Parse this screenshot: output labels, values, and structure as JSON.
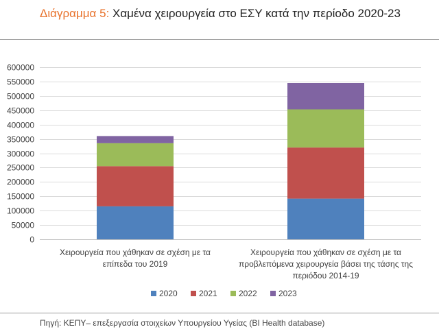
{
  "figure": {
    "label": "Διάγραμμα 5",
    "colon": ":",
    "title": " Χαμένα χειρουργεία στο ΕΣΥ κατά την περίοδο 2020-23",
    "source": "Πηγή: ΚΕΠΥ– επεξεργασία στοιχείων Υπουργείου Υγείας (BI Health database)"
  },
  "chart_data": {
    "type": "bar",
    "stacked": true,
    "categories": [
      [
        "Χειρουργεία που χάθηκαν σε σχέση με τα",
        "επίπεδα του 2019"
      ],
      [
        "Χειρουργεία που χάθηκαν σε σχέση με τα",
        "προβλεπόμενα χειρουργεία βάσει της τάσης της",
        "περιόδου 2014-19"
      ]
    ],
    "series": [
      {
        "name": "2020",
        "color": "#4f81bd",
        "values": [
          115000,
          142000
        ]
      },
      {
        "name": "2021",
        "color": "#c0504d",
        "values": [
          140000,
          178000
        ]
      },
      {
        "name": "2022",
        "color": "#9bbb59",
        "values": [
          80000,
          133000
        ]
      },
      {
        "name": "2023",
        "color": "#8064a2",
        "values": [
          25000,
          92000
        ]
      }
    ],
    "ylim": [
      0,
      600000
    ],
    "yticks": [
      "0",
      "50000",
      "100000",
      "150000",
      "200000",
      "250000",
      "300000",
      "350000",
      "400000",
      "450000",
      "500000",
      "550000",
      "600000"
    ],
    "ystep": 50000,
    "grid": true,
    "legend": "bottom"
  }
}
